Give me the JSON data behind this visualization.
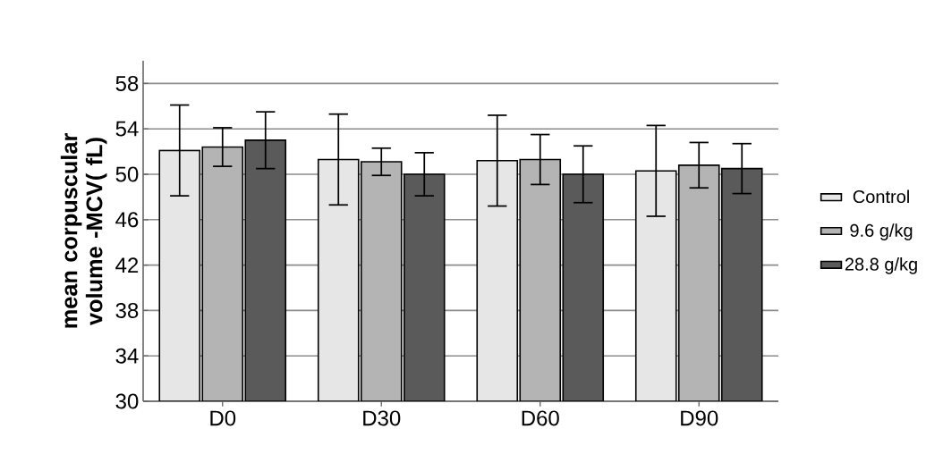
{
  "chart_data": {
    "type": "bar",
    "ylabel": "mean corpuscular volume -MCV( fL)",
    "categories": [
      "D0",
      "D30",
      "D60",
      "D90"
    ],
    "series": [
      {
        "name": "Control",
        "color": "#e6e6e6",
        "values": [
          52.1,
          51.3,
          51.2,
          50.3
        ],
        "errors": [
          4.0,
          4.0,
          4.0,
          4.0
        ]
      },
      {
        "name": "9.6 g/kg",
        "color": "#b4b4b4",
        "values": [
          52.4,
          51.1,
          51.3,
          50.8
        ],
        "errors": [
          1.7,
          1.2,
          2.2,
          2.0
        ]
      },
      {
        "name": "28.8 g/kg",
        "color": "#5a5a5a",
        "values": [
          53.0,
          50.0,
          50.0,
          50.5
        ],
        "errors": [
          2.5,
          1.9,
          2.5,
          2.2
        ]
      }
    ],
    "ylim": [
      30,
      60
    ],
    "yticks": [
      30,
      34,
      38,
      42,
      46,
      50,
      54,
      58
    ],
    "grid": "y",
    "legend": "right"
  }
}
